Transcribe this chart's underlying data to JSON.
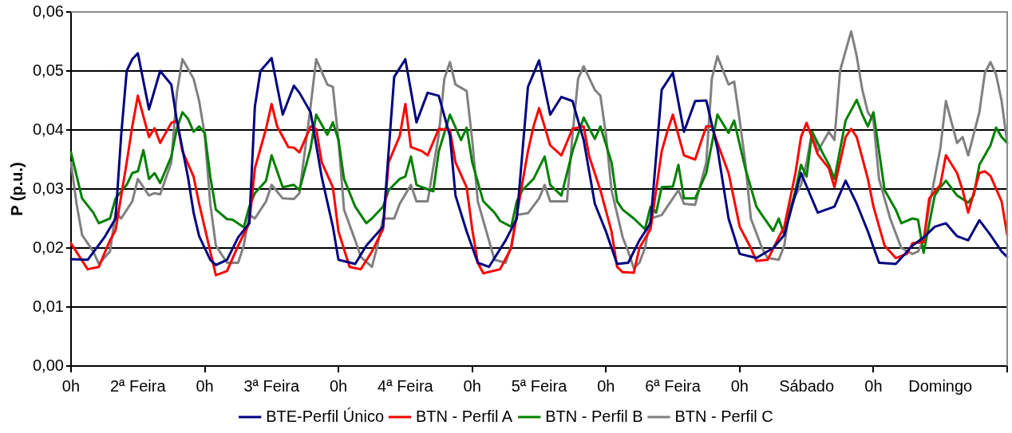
{
  "chart_data": {
    "type": "line",
    "ylabel": "P (p.u.)",
    "legend": "bottom",
    "grid": "y",
    "marker": "none",
    "line_style": "solid",
    "categories": [
      "0h",
      null,
      null,
      null,
      null,
      null,
      null,
      null,
      null,
      null,
      null,
      null,
      "2ª Feira",
      null,
      null,
      null,
      null,
      null,
      null,
      null,
      null,
      null,
      null,
      null,
      "0h",
      null,
      null,
      null,
      null,
      null,
      null,
      null,
      null,
      null,
      null,
      null,
      "3ª Feira",
      null,
      null,
      null,
      null,
      null,
      null,
      null,
      null,
      null,
      null,
      null,
      "0h",
      null,
      null,
      null,
      null,
      null,
      null,
      null,
      null,
      null,
      null,
      null,
      "4ª Feira",
      null,
      null,
      null,
      null,
      null,
      null,
      null,
      null,
      null,
      null,
      null,
      "0h",
      null,
      null,
      null,
      null,
      null,
      null,
      null,
      null,
      null,
      null,
      null,
      "5ª Feira",
      null,
      null,
      null,
      null,
      null,
      null,
      null,
      null,
      null,
      null,
      null,
      "0h",
      null,
      null,
      null,
      null,
      null,
      null,
      null,
      null,
      null,
      null,
      null,
      "6ª Feira",
      null,
      null,
      null,
      null,
      null,
      null,
      null,
      null,
      null,
      null,
      null,
      "0h",
      null,
      null,
      null,
      null,
      null,
      null,
      null,
      null,
      null,
      null,
      null,
      "Sábado",
      null,
      null,
      null,
      null,
      null,
      null,
      null,
      null,
      null,
      null,
      null,
      "0h",
      null,
      null,
      null,
      null,
      null,
      null,
      null,
      null,
      null,
      null,
      null,
      "Domingo",
      null,
      null,
      null,
      null,
      null,
      null,
      null,
      null,
      null,
      null,
      null,
      null
    ],
    "ylim": [
      0,
      0.06
    ],
    "yticks": [
      {
        "value": 0,
        "label": "0,00"
      },
      {
        "value": 0.01,
        "label": "0,01"
      },
      {
        "value": 0.02,
        "label": "0,02"
      },
      {
        "value": 0.03,
        "label": "0,03"
      },
      {
        "value": 0.04,
        "label": "0,04"
      },
      {
        "value": 0.05,
        "label": "0,05"
      },
      {
        "value": 0.06,
        "label": "0,06"
      }
    ],
    "series": [
      {
        "name": "BTE-Perfil Único",
        "color": "#000080",
        "values": [
          0.0181,
          null,
          null,
          0.018,
          null,
          null,
          0.0218,
          null,
          0.025,
          0.039,
          0.05,
          0.052,
          0.053,
          null,
          0.0435,
          null,
          0.05,
          null,
          0.0477,
          0.0416,
          null,
          0.032,
          0.026,
          0.022,
          null,
          0.018,
          0.0171,
          null,
          0.018,
          null,
          0.0218,
          null,
          0.0242,
          0.044,
          0.05,
          null,
          0.0522,
          null,
          0.0426,
          null,
          0.0475,
          0.0463,
          null,
          0.043,
          null,
          0.032,
          null,
          0.0236,
          0.018,
          null,
          null,
          0.0173,
          null,
          0.0204,
          null,
          null,
          0.0236,
          null,
          0.049,
          null,
          0.052,
          null,
          0.0413,
          null,
          0.0463,
          null,
          0.0458,
          null,
          0.039,
          0.0289,
          null,
          0.0228,
          null,
          0.0175,
          null,
          0.0168,
          null,
          null,
          0.0213,
          null,
          0.025,
          null,
          0.0473,
          null,
          0.0518,
          null,
          0.0426,
          null,
          0.0456,
          null,
          0.0449,
          null,
          0.0383,
          null,
          0.0275,
          null,
          0.0228,
          null,
          0.0173,
          null,
          0.0175,
          null,
          0.0213,
          null,
          0.0242,
          null,
          0.0468,
          null,
          0.0497,
          null,
          0.0397,
          null,
          0.0449,
          null,
          0.045,
          null,
          0.0369,
          null,
          0.025,
          null,
          0.019,
          null,
          null,
          0.0183,
          null,
          null,
          0.02,
          null,
          0.0222,
          null,
          null,
          0.0327,
          null,
          null,
          0.026,
          null,
          null,
          0.027,
          null,
          0.0314,
          null,
          0.0275,
          null,
          0.0228,
          null,
          0.0175,
          null,
          null,
          0.0173,
          null,
          null,
          0.0204,
          null,
          0.0218,
          null,
          0.0236,
          null,
          0.0242,
          null,
          0.022,
          null,
          0.0213,
          null,
          0.0247,
          null,
          0.0222,
          null,
          0.0194,
          0.0185
        ]
      },
      {
        "name": "BTN - Perfil A",
        "color": "#ff0000",
        "values": [
          0.0208,
          null,
          null,
          0.0164,
          null,
          0.0168,
          null,
          0.0213,
          0.023,
          null,
          0.0345,
          0.0406,
          0.0458,
          null,
          0.0388,
          0.0403,
          0.0378,
          null,
          0.0412,
          0.0416,
          0.0364,
          null,
          0.0321,
          0.0275,
          null,
          0.0194,
          0.0154,
          null,
          0.0161,
          null,
          0.0204,
          null,
          0.0242,
          0.0335,
          null,
          0.0402,
          0.0444,
          0.0406,
          null,
          0.0371,
          0.037,
          0.0362,
          null,
          0.0406,
          0.0402,
          0.0345,
          null,
          0.0303,
          0.0228,
          null,
          0.0168,
          null,
          0.0164,
          null,
          0.0194,
          null,
          0.0232,
          0.0345,
          null,
          0.039,
          0.0444,
          0.0371,
          null,
          0.0364,
          0.0357,
          null,
          0.0402,
          null,
          0.04,
          0.0345,
          null,
          0.0303,
          0.0232,
          0.0175,
          0.0157,
          null,
          null,
          0.0164,
          null,
          0.02,
          0.0256,
          null,
          0.0364,
          0.0406,
          0.0437,
          null,
          0.0374,
          null,
          0.0357,
          null,
          0.0402,
          null,
          0.0406,
          0.0355,
          null,
          0.0298,
          null,
          0.0228,
          0.0168,
          0.0159,
          null,
          0.0158,
          0.02,
          null,
          0.0232,
          null,
          0.0364,
          0.0397,
          0.0426,
          null,
          0.0357,
          null,
          0.035,
          null,
          0.0406,
          0.0406,
          0.0378,
          null,
          0.0327,
          null,
          0.0236,
          null,
          0.02,
          0.0178,
          null,
          0.018,
          null,
          0.0218,
          0.0236,
          null,
          0.0327,
          0.0388,
          0.0412,
          null,
          0.0359,
          null,
          0.0335,
          0.0303,
          null,
          0.0388,
          0.0402,
          0.0388,
          null,
          0.0317,
          0.027,
          null,
          0.0204,
          null,
          0.0183,
          null,
          0.019,
          0.0208,
          null,
          0.021,
          0.0284,
          null,
          0.0307,
          0.0357,
          null,
          0.0327,
          0.0298,
          0.026,
          null,
          0.0327,
          0.033,
          0.0322,
          null,
          0.0279,
          0.0222
        ]
      },
      {
        "name": "BTN - Perfil B",
        "color": "#008000",
        "values": [
          0.0362,
          null,
          0.0284,
          null,
          0.026,
          0.0242,
          null,
          0.025,
          0.0284,
          null,
          0.0307,
          0.0327,
          0.033,
          0.0366,
          0.0317,
          0.0327,
          0.031,
          null,
          0.0355,
          0.0402,
          0.043,
          0.0419,
          0.0397,
          0.0406,
          0.0395,
          0.0321,
          0.0265,
          null,
          0.0249,
          0.0248,
          null,
          0.0235,
          0.027,
          0.0293,
          null,
          0.0314,
          0.0357,
          null,
          0.0303,
          null,
          0.0307,
          0.0298,
          null,
          0.0369,
          0.0426,
          null,
          0.0392,
          0.0413,
          0.0383,
          0.0317,
          null,
          0.027,
          null,
          0.0242,
          0.025,
          null,
          0.027,
          0.0298,
          null,
          0.0317,
          0.0321,
          0.0355,
          0.0307,
          0.0303,
          null,
          0.0296,
          0.0364,
          null,
          0.0426,
          null,
          0.0383,
          0.0404,
          0.0345,
          null,
          0.0279,
          null,
          0.026,
          0.0246,
          null,
          0.0236,
          0.0279,
          0.0298,
          null,
          0.0317,
          null,
          0.0355,
          0.0307,
          null,
          0.0289,
          null,
          0.0364,
          null,
          0.0421,
          null,
          0.0385,
          0.0406,
          null,
          0.0345,
          0.0279,
          0.0265,
          null,
          0.025,
          null,
          0.0232,
          0.027,
          0.026,
          0.0303,
          null,
          0.0304,
          0.0341,
          0.0284,
          null,
          0.0284,
          null,
          0.0327,
          null,
          0.0426,
          null,
          0.0395,
          0.0416,
          null,
          0.0335,
          null,
          0.027,
          0.0256,
          null,
          0.0229,
          0.025,
          0.0222,
          null,
          0.0298,
          0.0341,
          0.0321,
          0.0397,
          null,
          0.0359,
          0.0341,
          0.0317,
          null,
          0.0416,
          null,
          0.0451,
          0.0426,
          0.0406,
          0.043,
          0.0364,
          0.0298,
          null,
          0.0265,
          0.0242,
          null,
          0.025,
          0.0248,
          0.0192,
          null,
          0.0289,
          0.0303,
          0.0314,
          null,
          0.0289,
          null,
          0.0277,
          0.0289,
          0.0341,
          null,
          0.0374,
          0.0404,
          0.0388,
          0.0378
        ]
      },
      {
        "name": "BTN - Perfil C",
        "color": "#808080",
        "values": [
          0.0345,
          0.0275,
          0.0222,
          null,
          0.0194,
          0.0173,
          null,
          0.0194,
          0.026,
          0.025,
          null,
          0.0279,
          0.0317,
          null,
          0.0289,
          0.0293,
          0.0291,
          null,
          0.0345,
          0.0463,
          0.052,
          null,
          0.0487,
          0.0449,
          0.0392,
          0.0275,
          0.0204,
          null,
          0.0175,
          null,
          0.0175,
          0.0204,
          0.0256,
          0.025,
          null,
          0.0279,
          0.0307,
          null,
          0.0284,
          null,
          0.0283,
          0.0293,
          null,
          0.044,
          0.052,
          null,
          0.0477,
          0.0473,
          0.0383,
          0.0265,
          null,
          0.0213,
          0.0185,
          null,
          0.0168,
          0.0204,
          0.025,
          null,
          0.025,
          0.0275,
          null,
          0.0307,
          0.0279,
          null,
          0.0279,
          null,
          0.0392,
          0.0487,
          0.0515,
          0.0477,
          null,
          0.0466,
          0.0383,
          0.0279,
          null,
          0.0213,
          0.018,
          null,
          0.0175,
          0.0204,
          0.0256,
          null,
          0.0259,
          null,
          0.0284,
          0.0307,
          0.0279,
          null,
          null,
          0.0279,
          0.0392,
          0.0487,
          0.0508,
          null,
          0.0468,
          0.0458,
          0.0392,
          0.0298,
          null,
          0.0218,
          0.0194,
          0.0166,
          0.0175,
          0.02,
          0.025,
          null,
          0.0256,
          null,
          null,
          0.0298,
          0.0275,
          null,
          0.0273,
          null,
          0.0345,
          0.0487,
          0.0525,
          null,
          0.0477,
          0.0482,
          0.0416,
          0.0345,
          0.025,
          null,
          0.02,
          0.0183,
          null,
          0.018,
          0.0204,
          0.027,
          null,
          0.0307,
          0.0345,
          0.0397,
          0.0364,
          null,
          0.0397,
          0.0383,
          0.05,
          0.0534,
          0.0567,
          0.0525,
          0.0468,
          0.043,
          0.0416,
          0.0317,
          null,
          0.025,
          null,
          0.02,
          null,
          0.019,
          0.0194,
          0.0213,
          0.027,
          null,
          0.0369,
          0.0449,
          null,
          0.0378,
          0.0388,
          0.0357,
          null,
          0.043,
          0.0497,
          0.0515,
          0.0494,
          0.0449,
          0.0378
        ]
      }
    ]
  }
}
